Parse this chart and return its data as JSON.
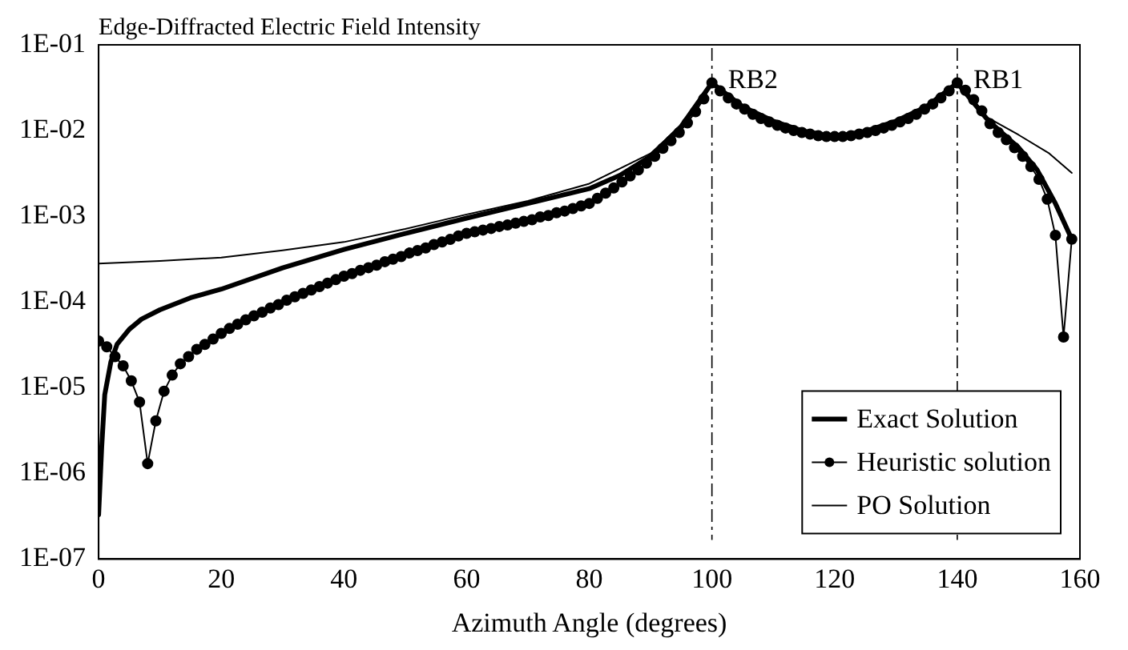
{
  "chart_data": {
    "type": "line",
    "title": "Edge-Diffracted Electric Field Intensity",
    "xlabel": "Azimuth Angle (degrees)",
    "log": "y",
    "grid": false,
    "legend": "bottom right",
    "line_style": "solid",
    "xlim": [
      0,
      160
    ],
    "xticks": [
      0,
      20,
      40,
      60,
      80,
      100,
      120,
      140,
      160
    ],
    "ylim": [
      1e-07,
      0.1
    ],
    "yticks": [
      {
        "value": 1e-07,
        "label": "1E-07"
      },
      {
        "value": 1e-06,
        "label": "1E-06"
      },
      {
        "value": 1e-05,
        "label": "1E-05"
      },
      {
        "value": 0.0001,
        "label": "1E-04"
      },
      {
        "value": 0.001,
        "label": "1E-03"
      },
      {
        "value": 0.01,
        "label": "1E-02"
      },
      {
        "value": 0.1,
        "label": "1E-01"
      }
    ],
    "ref_lines": [
      {
        "axis": "x",
        "value": 100,
        "label": "RB2",
        "color": "#000000",
        "line_style": "dashdot"
      },
      {
        "axis": "x",
        "value": 140,
        "label": "RB1",
        "color": "#000000",
        "line_style": "dashdot"
      }
    ],
    "series": [
      {
        "name": "Exact Solution",
        "color": "#000000",
        "marker": "none",
        "x": [
          0,
          0.5,
          1,
          2,
          3,
          5,
          7,
          10,
          15,
          20,
          30,
          40,
          50,
          60,
          70,
          80,
          85,
          90,
          95,
          100,
          105,
          110,
          115,
          120,
          125,
          130,
          135,
          140,
          145,
          150,
          153,
          156,
          158.67
        ],
        "values": [
          3.3e-07,
          2e-06,
          8.3e-06,
          2e-05,
          3.2e-05,
          4.8e-05,
          6.3e-05,
          8.1e-05,
          0.000112,
          0.000141,
          0.00025,
          0.00041,
          0.00063,
          0.00095,
          0.00141,
          0.0021,
          0.003,
          0.005,
          0.0112,
          0.036,
          0.019,
          0.0129,
          0.0098,
          0.0085,
          0.0098,
          0.0129,
          0.019,
          0.036,
          0.0132,
          0.0063,
          0.0035,
          0.00141,
          0.00054
        ]
      },
      {
        "name": "Heuristic solution",
        "color": "#000000",
        "marker": "circle",
        "x": [
          0,
          1.33,
          2.67,
          4,
          5.33,
          6.67,
          8,
          9.33,
          10.67,
          12,
          13.33,
          14.67,
          16,
          17.33,
          18.67,
          20,
          21.33,
          22.67,
          24,
          25.33,
          26.67,
          28,
          29.33,
          30.67,
          32,
          33.33,
          34.67,
          36,
          37.33,
          38.67,
          40,
          41.33,
          42.67,
          44,
          45.33,
          46.67,
          48,
          49.33,
          50.67,
          52,
          53.33,
          54.67,
          56,
          57.33,
          58.67,
          60,
          61.33,
          62.67,
          64,
          65.33,
          66.67,
          68,
          69.33,
          70.67,
          72,
          73.33,
          74.67,
          76,
          77.33,
          78.67,
          80,
          81.33,
          82.67,
          84,
          85.33,
          86.67,
          88,
          89.33,
          90.67,
          92,
          93.33,
          94.67,
          96,
          97.33,
          98.67,
          100,
          101.33,
          102.67,
          104,
          105.33,
          106.67,
          108,
          109.33,
          110.67,
          112,
          113.33,
          114.67,
          116,
          117.33,
          118.67,
          120,
          121.33,
          122.67,
          124,
          125.33,
          126.67,
          128,
          129.33,
          130.67,
          132,
          133.33,
          134.67,
          136,
          137.33,
          138.67,
          140,
          141.33,
          142.67,
          144,
          145.33,
          146.67,
          148,
          149.33,
          150.67,
          152,
          153.33,
          154.67,
          156,
          157.33,
          158.67
        ],
        "values": [
          3.5e-05,
          3e-05,
          2.3e-05,
          1.8e-05,
          1.2e-05,
          6.8e-06,
          1.3e-06,
          4.1e-06,
          9.1e-06,
          1.4e-05,
          1.9e-05,
          2.3e-05,
          2.8e-05,
          3.2e-05,
          3.7e-05,
          4.3e-05,
          4.9e-05,
          5.5e-05,
          6.2e-05,
          6.9e-05,
          7.6e-05,
          8.5e-05,
          9.3e-05,
          0.000105,
          0.000115,
          0.000126,
          0.000138,
          0.000151,
          0.000166,
          0.000182,
          0.0002,
          0.000214,
          0.000234,
          0.000251,
          0.000269,
          0.000295,
          0.000316,
          0.000339,
          0.000372,
          0.000398,
          0.000427,
          0.000468,
          0.0005,
          0.000537,
          0.000589,
          0.000631,
          0.00066,
          0.00069,
          0.00072,
          0.00076,
          0.00079,
          0.00083,
          0.00087,
          0.00091,
          0.00098,
          0.00102,
          0.0011,
          0.00115,
          0.00123,
          0.00132,
          0.00141,
          0.00162,
          0.00186,
          0.00214,
          0.00251,
          0.00295,
          0.00347,
          0.00417,
          0.005,
          0.0062,
          0.0076,
          0.0095,
          0.0123,
          0.0166,
          0.0234,
          0.036,
          0.029,
          0.024,
          0.0204,
          0.0178,
          0.0155,
          0.0138,
          0.0126,
          0.0115,
          0.0107,
          0.01,
          0.0095,
          0.0091,
          0.0087,
          0.0085,
          0.0085,
          0.0085,
          0.0087,
          0.0091,
          0.0095,
          0.01,
          0.0107,
          0.0115,
          0.0126,
          0.0138,
          0.0155,
          0.0178,
          0.0204,
          0.024,
          0.029,
          0.036,
          0.0295,
          0.0229,
          0.017,
          0.012,
          0.0095,
          0.0078,
          0.0063,
          0.005,
          0.0038,
          0.0027,
          0.00158,
          0.0006,
          3.9e-05,
          0.00054
        ]
      },
      {
        "name": "PO Solution",
        "color": "#000000",
        "marker": "none",
        "x": [
          0,
          10,
          20,
          30,
          40,
          50,
          60,
          70,
          80,
          90,
          95,
          100,
          105,
          110,
          115,
          120,
          125,
          130,
          135,
          140,
          145,
          150,
          155,
          158.67
        ],
        "values": [
          0.00028,
          0.0003,
          0.00033,
          0.0004,
          0.0005,
          0.00071,
          0.00105,
          0.00151,
          0.0024,
          0.0054,
          0.0115,
          0.036,
          0.019,
          0.0129,
          0.0098,
          0.0085,
          0.0098,
          0.0129,
          0.019,
          0.036,
          0.0141,
          0.0089,
          0.0054,
          0.0032
        ]
      }
    ]
  }
}
